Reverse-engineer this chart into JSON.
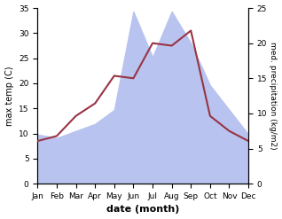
{
  "months": [
    "Jan",
    "Feb",
    "Mar",
    "Apr",
    "May",
    "Jun",
    "Jul",
    "Aug",
    "Sep",
    "Oct",
    "Nov",
    "Dec"
  ],
  "temperature": [
    8.5,
    9.5,
    13.5,
    16.0,
    21.5,
    21.0,
    28.0,
    27.5,
    30.5,
    13.5,
    10.5,
    8.5
  ],
  "precipitation_right": [
    7.0,
    6.5,
    7.5,
    8.5,
    10.5,
    24.5,
    18.0,
    24.5,
    20.0,
    14.0,
    10.5,
    7.0
  ],
  "temp_color": "#993344",
  "precip_fill_color": "#b8c4ef",
  "temp_ylim": [
    0,
    35
  ],
  "precip_ylim": [
    0,
    25
  ],
  "temp_yticks": [
    0,
    5,
    10,
    15,
    20,
    25,
    30,
    35
  ],
  "precip_yticks": [
    0,
    5,
    10,
    15,
    20,
    25
  ],
  "xlabel": "date (month)",
  "ylabel_left": "max temp (C)",
  "ylabel_right": "med. precipitation (kg/m2)",
  "bg_color": "#ffffff"
}
